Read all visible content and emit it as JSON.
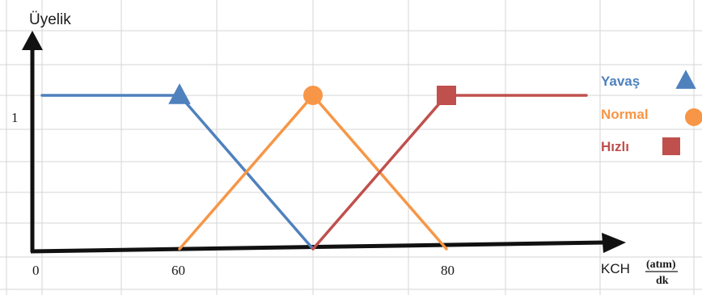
{
  "chart_data": {
    "type": "line",
    "ylabel": "Üyelik",
    "xlabel": "KCH",
    "xlabel_unit_numerator": "(atım)",
    "xlabel_unit_denominator": "dk",
    "x_ticks": [
      {
        "label": "0",
        "value": 0
      },
      {
        "label": "60",
        "value": 60
      },
      {
        "label": "80",
        "value": 80
      }
    ],
    "y_ticks": [
      {
        "label": "1",
        "value": 1
      }
    ],
    "xlim": [
      0,
      90
    ],
    "ylim": [
      0,
      1.5
    ],
    "grid": true,
    "legend_position": "right",
    "series": [
      {
        "name": "Yavaş",
        "color": "#4f81bd",
        "marker": "triangle",
        "marker_at": [
          60,
          1
        ],
        "points": [
          [
            0,
            1
          ],
          [
            60,
            1
          ],
          [
            70,
            0
          ]
        ]
      },
      {
        "name": "Normal",
        "color": "#f79646",
        "marker": "circle",
        "marker_at": [
          70,
          1
        ],
        "points": [
          [
            60,
            0
          ],
          [
            70,
            1
          ],
          [
            80,
            0
          ]
        ]
      },
      {
        "name": "Hızlı",
        "color": "#c0504d",
        "marker": "square",
        "marker_at": [
          80,
          1
        ],
        "points": [
          [
            70,
            0
          ],
          [
            80,
            1
          ],
          [
            90,
            1
          ]
        ]
      }
    ]
  }
}
